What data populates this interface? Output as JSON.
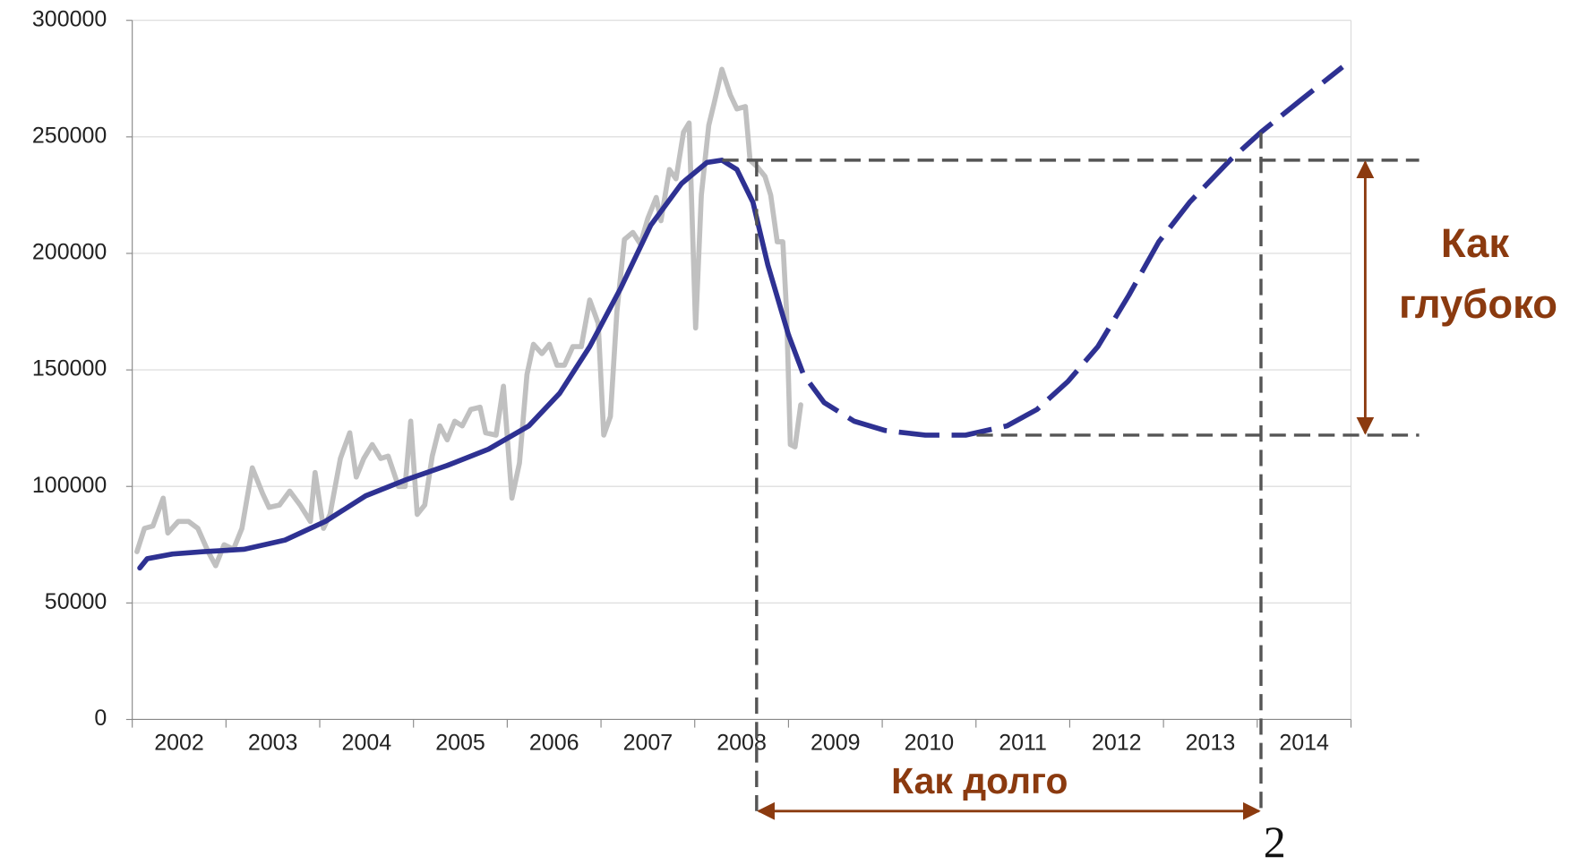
{
  "chart_data": {
    "type": "line",
    "categories": [
      "2002",
      "2003",
      "2004",
      "2005",
      "2006",
      "2007",
      "2008",
      "2009",
      "2010",
      "2011",
      "2012",
      "2013",
      "2014"
    ],
    "xlim": [
      2002,
      2015
    ],
    "ylim": [
      0,
      300000
    ],
    "yticks": [
      0,
      50000,
      100000,
      150000,
      200000,
      250000,
      300000
    ],
    "grid": true,
    "series": [
      {
        "color": "#c0c0c0",
        "dashed": false,
        "x": [
          2002.05,
          2002.13,
          2002.22,
          2002.33,
          2002.38,
          2002.49,
          2002.6,
          2002.7,
          2002.81,
          2002.89,
          2002.98,
          2003.08,
          2003.17,
          2003.28,
          2003.39,
          2003.46,
          2003.57,
          2003.68,
          2003.79,
          2003.9,
          2003.95,
          2004.04,
          2004.11,
          2004.22,
          2004.32,
          2004.39,
          2004.47,
          2004.56,
          2004.65,
          2004.73,
          2004.84,
          2004.91,
          2004.97,
          2005.04,
          2005.12,
          2005.2,
          2005.28,
          2005.36,
          2005.44,
          2005.52,
          2005.61,
          2005.71,
          2005.77,
          2005.88,
          2005.96,
          2006.05,
          2006.13,
          2006.21,
          2006.28,
          2006.37,
          2006.45,
          2006.53,
          2006.61,
          2006.7,
          2006.79,
          2006.88,
          2006.97,
          2007.03,
          2007.1,
          2007.17,
          2007.25,
          2007.34,
          2007.42,
          2007.5,
          2007.59,
          2007.64,
          2007.73,
          2007.8,
          2007.88,
          2007.94,
          2008.01,
          2008.07,
          2008.15,
          2008.21,
          2008.29,
          2008.38,
          2008.45,
          2008.54,
          2008.59,
          2008.67,
          2008.75,
          2008.81,
          2008.88,
          2008.94,
          2008.98,
          2009.02,
          2009.07,
          2009.13
        ],
        "values": [
          72000,
          82000,
          83000,
          95000,
          80000,
          85000,
          85000,
          82000,
          72000,
          66000,
          75000,
          73000,
          82000,
          108000,
          97000,
          91000,
          92000,
          98000,
          92000,
          85000,
          106000,
          82000,
          88000,
          112000,
          123000,
          104000,
          112000,
          118000,
          112000,
          113000,
          100000,
          100000,
          128000,
          88000,
          92000,
          113000,
          126000,
          120000,
          128000,
          126000,
          133000,
          134000,
          123000,
          122000,
          143000,
          95000,
          110000,
          148000,
          161000,
          157000,
          161000,
          152000,
          152000,
          160000,
          160000,
          180000,
          170000,
          122000,
          130000,
          175000,
          206000,
          209000,
          204000,
          215000,
          224000,
          214000,
          236000,
          232000,
          252000,
          256000,
          168000,
          225000,
          255000,
          265000,
          279000,
          268000,
          262000,
          263000,
          240000,
          237000,
          233000,
          225000,
          205000,
          205000,
          175000,
          118000,
          117000,
          135000
        ]
      },
      {
        "color": "#2e3192",
        "dashed": false,
        "x": [
          2002.08,
          2002.16,
          2002.43,
          2002.76,
          2003.19,
          2003.63,
          2004.06,
          2004.49,
          2004.93,
          2005.36,
          2005.8,
          2006.23,
          2006.56,
          2006.88,
          2007.21,
          2007.53,
          2007.86,
          2008.13,
          2008.29,
          2008.45,
          2008.62,
          2008.78,
          2009.0
        ],
        "values": [
          65000,
          69000,
          71000,
          72000,
          73000,
          77000,
          85000,
          96000,
          103000,
          109000,
          116000,
          126000,
          140000,
          160000,
          185000,
          212000,
          230000,
          239000,
          240000,
          236000,
          222000,
          195000,
          165000
        ]
      },
      {
        "color": "#2e3192",
        "dashed": true,
        "x": [
          2009.0,
          2009.16,
          2009.38,
          2009.7,
          2010.03,
          2010.46,
          2010.89,
          2011.33,
          2011.65,
          2011.98,
          2012.3,
          2012.63,
          2012.95,
          2013.28,
          2013.71,
          2014.04,
          2014.47,
          2014.91
        ],
        "values": [
          165000,
          148000,
          136000,
          128000,
          124000,
          122000,
          122000,
          126000,
          133000,
          145000,
          160000,
          182000,
          205000,
          222000,
          240000,
          252000,
          266000,
          280000
        ]
      }
    ],
    "reference_lines": {
      "y": [
        240000,
        122000
      ],
      "x": [
        2008.66,
        2014.04
      ]
    },
    "annotations": {
      "depth": [
        "Как",
        "глубоко"
      ],
      "duration": "Как долго",
      "page_number": "2"
    }
  }
}
